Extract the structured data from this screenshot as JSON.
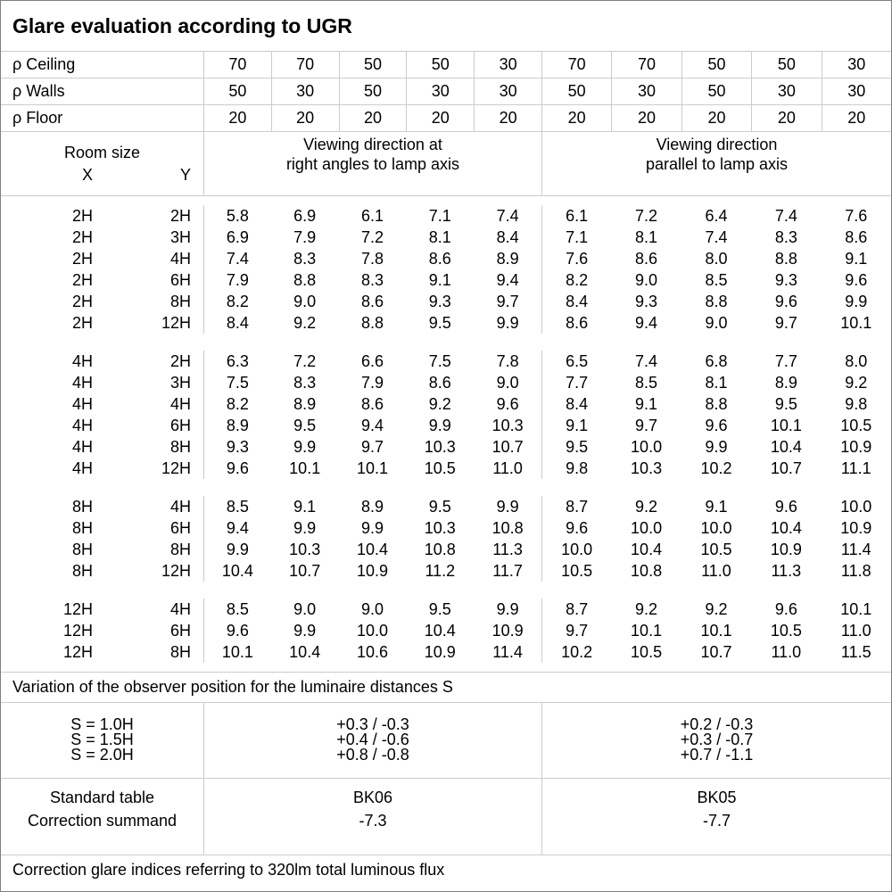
{
  "title": "Glare evaluation according to UGR",
  "colors": {
    "background": "#ffffff",
    "text": "#000000",
    "grid_line": "#cccccc",
    "outer_border": "#808080"
  },
  "reflectance_rows": [
    {
      "label": "ρ Ceiling",
      "values": [
        "70",
        "70",
        "50",
        "50",
        "30",
        "70",
        "70",
        "50",
        "50",
        "30"
      ]
    },
    {
      "label": "ρ Walls",
      "values": [
        "50",
        "30",
        "50",
        "30",
        "30",
        "50",
        "30",
        "50",
        "30",
        "30"
      ]
    },
    {
      "label": "ρ Floor",
      "values": [
        "20",
        "20",
        "20",
        "20",
        "20",
        "20",
        "20",
        "20",
        "20",
        "20"
      ]
    }
  ],
  "header": {
    "room_size": "Room size",
    "x_label": "X",
    "y_label": "Y",
    "viewing_right_angles": [
      "Viewing direction at",
      "right angles to lamp axis"
    ],
    "viewing_parallel": [
      "Viewing direction",
      "parallel to lamp axis"
    ]
  },
  "groups": [
    {
      "rows": [
        {
          "x": "2H",
          "y": "2H",
          "values": [
            "5.8",
            "6.9",
            "6.1",
            "7.1",
            "7.4",
            "6.1",
            "7.2",
            "6.4",
            "7.4",
            "7.6"
          ]
        },
        {
          "x": "2H",
          "y": "3H",
          "values": [
            "6.9",
            "7.9",
            "7.2",
            "8.1",
            "8.4",
            "7.1",
            "8.1",
            "7.4",
            "8.3",
            "8.6"
          ]
        },
        {
          "x": "2H",
          "y": "4H",
          "values": [
            "7.4",
            "8.3",
            "7.8",
            "8.6",
            "8.9",
            "7.6",
            "8.6",
            "8.0",
            "8.8",
            "9.1"
          ]
        },
        {
          "x": "2H",
          "y": "6H",
          "values": [
            "7.9",
            "8.8",
            "8.3",
            "9.1",
            "9.4",
            "8.2",
            "9.0",
            "8.5",
            "9.3",
            "9.6"
          ]
        },
        {
          "x": "2H",
          "y": "8H",
          "values": [
            "8.2",
            "9.0",
            "8.6",
            "9.3",
            "9.7",
            "8.4",
            "9.3",
            "8.8",
            "9.6",
            "9.9"
          ]
        },
        {
          "x": "2H",
          "y": "12H",
          "values": [
            "8.4",
            "9.2",
            "8.8",
            "9.5",
            "9.9",
            "8.6",
            "9.4",
            "9.0",
            "9.7",
            "10.1"
          ]
        }
      ]
    },
    {
      "rows": [
        {
          "x": "4H",
          "y": "2H",
          "values": [
            "6.3",
            "7.2",
            "6.6",
            "7.5",
            "7.8",
            "6.5",
            "7.4",
            "6.8",
            "7.7",
            "8.0"
          ]
        },
        {
          "x": "4H",
          "y": "3H",
          "values": [
            "7.5",
            "8.3",
            "7.9",
            "8.6",
            "9.0",
            "7.7",
            "8.5",
            "8.1",
            "8.9",
            "9.2"
          ]
        },
        {
          "x": "4H",
          "y": "4H",
          "values": [
            "8.2",
            "8.9",
            "8.6",
            "9.2",
            "9.6",
            "8.4",
            "9.1",
            "8.8",
            "9.5",
            "9.8"
          ]
        },
        {
          "x": "4H",
          "y": "6H",
          "values": [
            "8.9",
            "9.5",
            "9.4",
            "9.9",
            "10.3",
            "9.1",
            "9.7",
            "9.6",
            "10.1",
            "10.5"
          ]
        },
        {
          "x": "4H",
          "y": "8H",
          "values": [
            "9.3",
            "9.9",
            "9.7",
            "10.3",
            "10.7",
            "9.5",
            "10.0",
            "9.9",
            "10.4",
            "10.9"
          ]
        },
        {
          "x": "4H",
          "y": "12H",
          "values": [
            "9.6",
            "10.1",
            "10.1",
            "10.5",
            "11.0",
            "9.8",
            "10.3",
            "10.2",
            "10.7",
            "11.1"
          ]
        }
      ]
    },
    {
      "rows": [
        {
          "x": "8H",
          "y": "4H",
          "values": [
            "8.5",
            "9.1",
            "8.9",
            "9.5",
            "9.9",
            "8.7",
            "9.2",
            "9.1",
            "9.6",
            "10.0"
          ]
        },
        {
          "x": "8H",
          "y": "6H",
          "values": [
            "9.4",
            "9.9",
            "9.9",
            "10.3",
            "10.8",
            "9.6",
            "10.0",
            "10.0",
            "10.4",
            "10.9"
          ]
        },
        {
          "x": "8H",
          "y": "8H",
          "values": [
            "9.9",
            "10.3",
            "10.4",
            "10.8",
            "11.3",
            "10.0",
            "10.4",
            "10.5",
            "10.9",
            "11.4"
          ]
        },
        {
          "x": "8H",
          "y": "12H",
          "values": [
            "10.4",
            "10.7",
            "10.9",
            "11.2",
            "11.7",
            "10.5",
            "10.8",
            "11.0",
            "11.3",
            "11.8"
          ]
        }
      ]
    },
    {
      "rows": [
        {
          "x": "12H",
          "y": "4H",
          "values": [
            "8.5",
            "9.0",
            "9.0",
            "9.5",
            "9.9",
            "8.7",
            "9.2",
            "9.2",
            "9.6",
            "10.1"
          ]
        },
        {
          "x": "12H",
          "y": "6H",
          "values": [
            "9.6",
            "9.9",
            "10.0",
            "10.4",
            "10.9",
            "9.7",
            "10.1",
            "10.1",
            "10.5",
            "11.0"
          ]
        },
        {
          "x": "12H",
          "y": "8H",
          "values": [
            "10.1",
            "10.4",
            "10.6",
            "10.9",
            "11.4",
            "10.2",
            "10.5",
            "10.7",
            "11.0",
            "11.5"
          ]
        }
      ]
    }
  ],
  "variation_note": "Variation of the observer position for the luminaire distances S",
  "spacing_table": {
    "rows": [
      {
        "label": "S = 1.0H",
        "right_angles": "+0.3 / -0.3",
        "parallel": "+0.2 / -0.3"
      },
      {
        "label": "S = 1.5H",
        "right_angles": "+0.4 / -0.6",
        "parallel": "+0.3 / -0.7"
      },
      {
        "label": "S = 2.0H",
        "right_angles": "+0.8 / -0.8",
        "parallel": "+0.7 / -1.1"
      }
    ]
  },
  "standard_table": {
    "row_labels": [
      "Standard table",
      "Correction summand"
    ],
    "right_angles": {
      "code": "BK06",
      "correction": "-7.3"
    },
    "parallel": {
      "code": "BK05",
      "correction": "-7.7"
    }
  },
  "footer_note": "Correction glare indices referring to 320lm total luminous flux"
}
